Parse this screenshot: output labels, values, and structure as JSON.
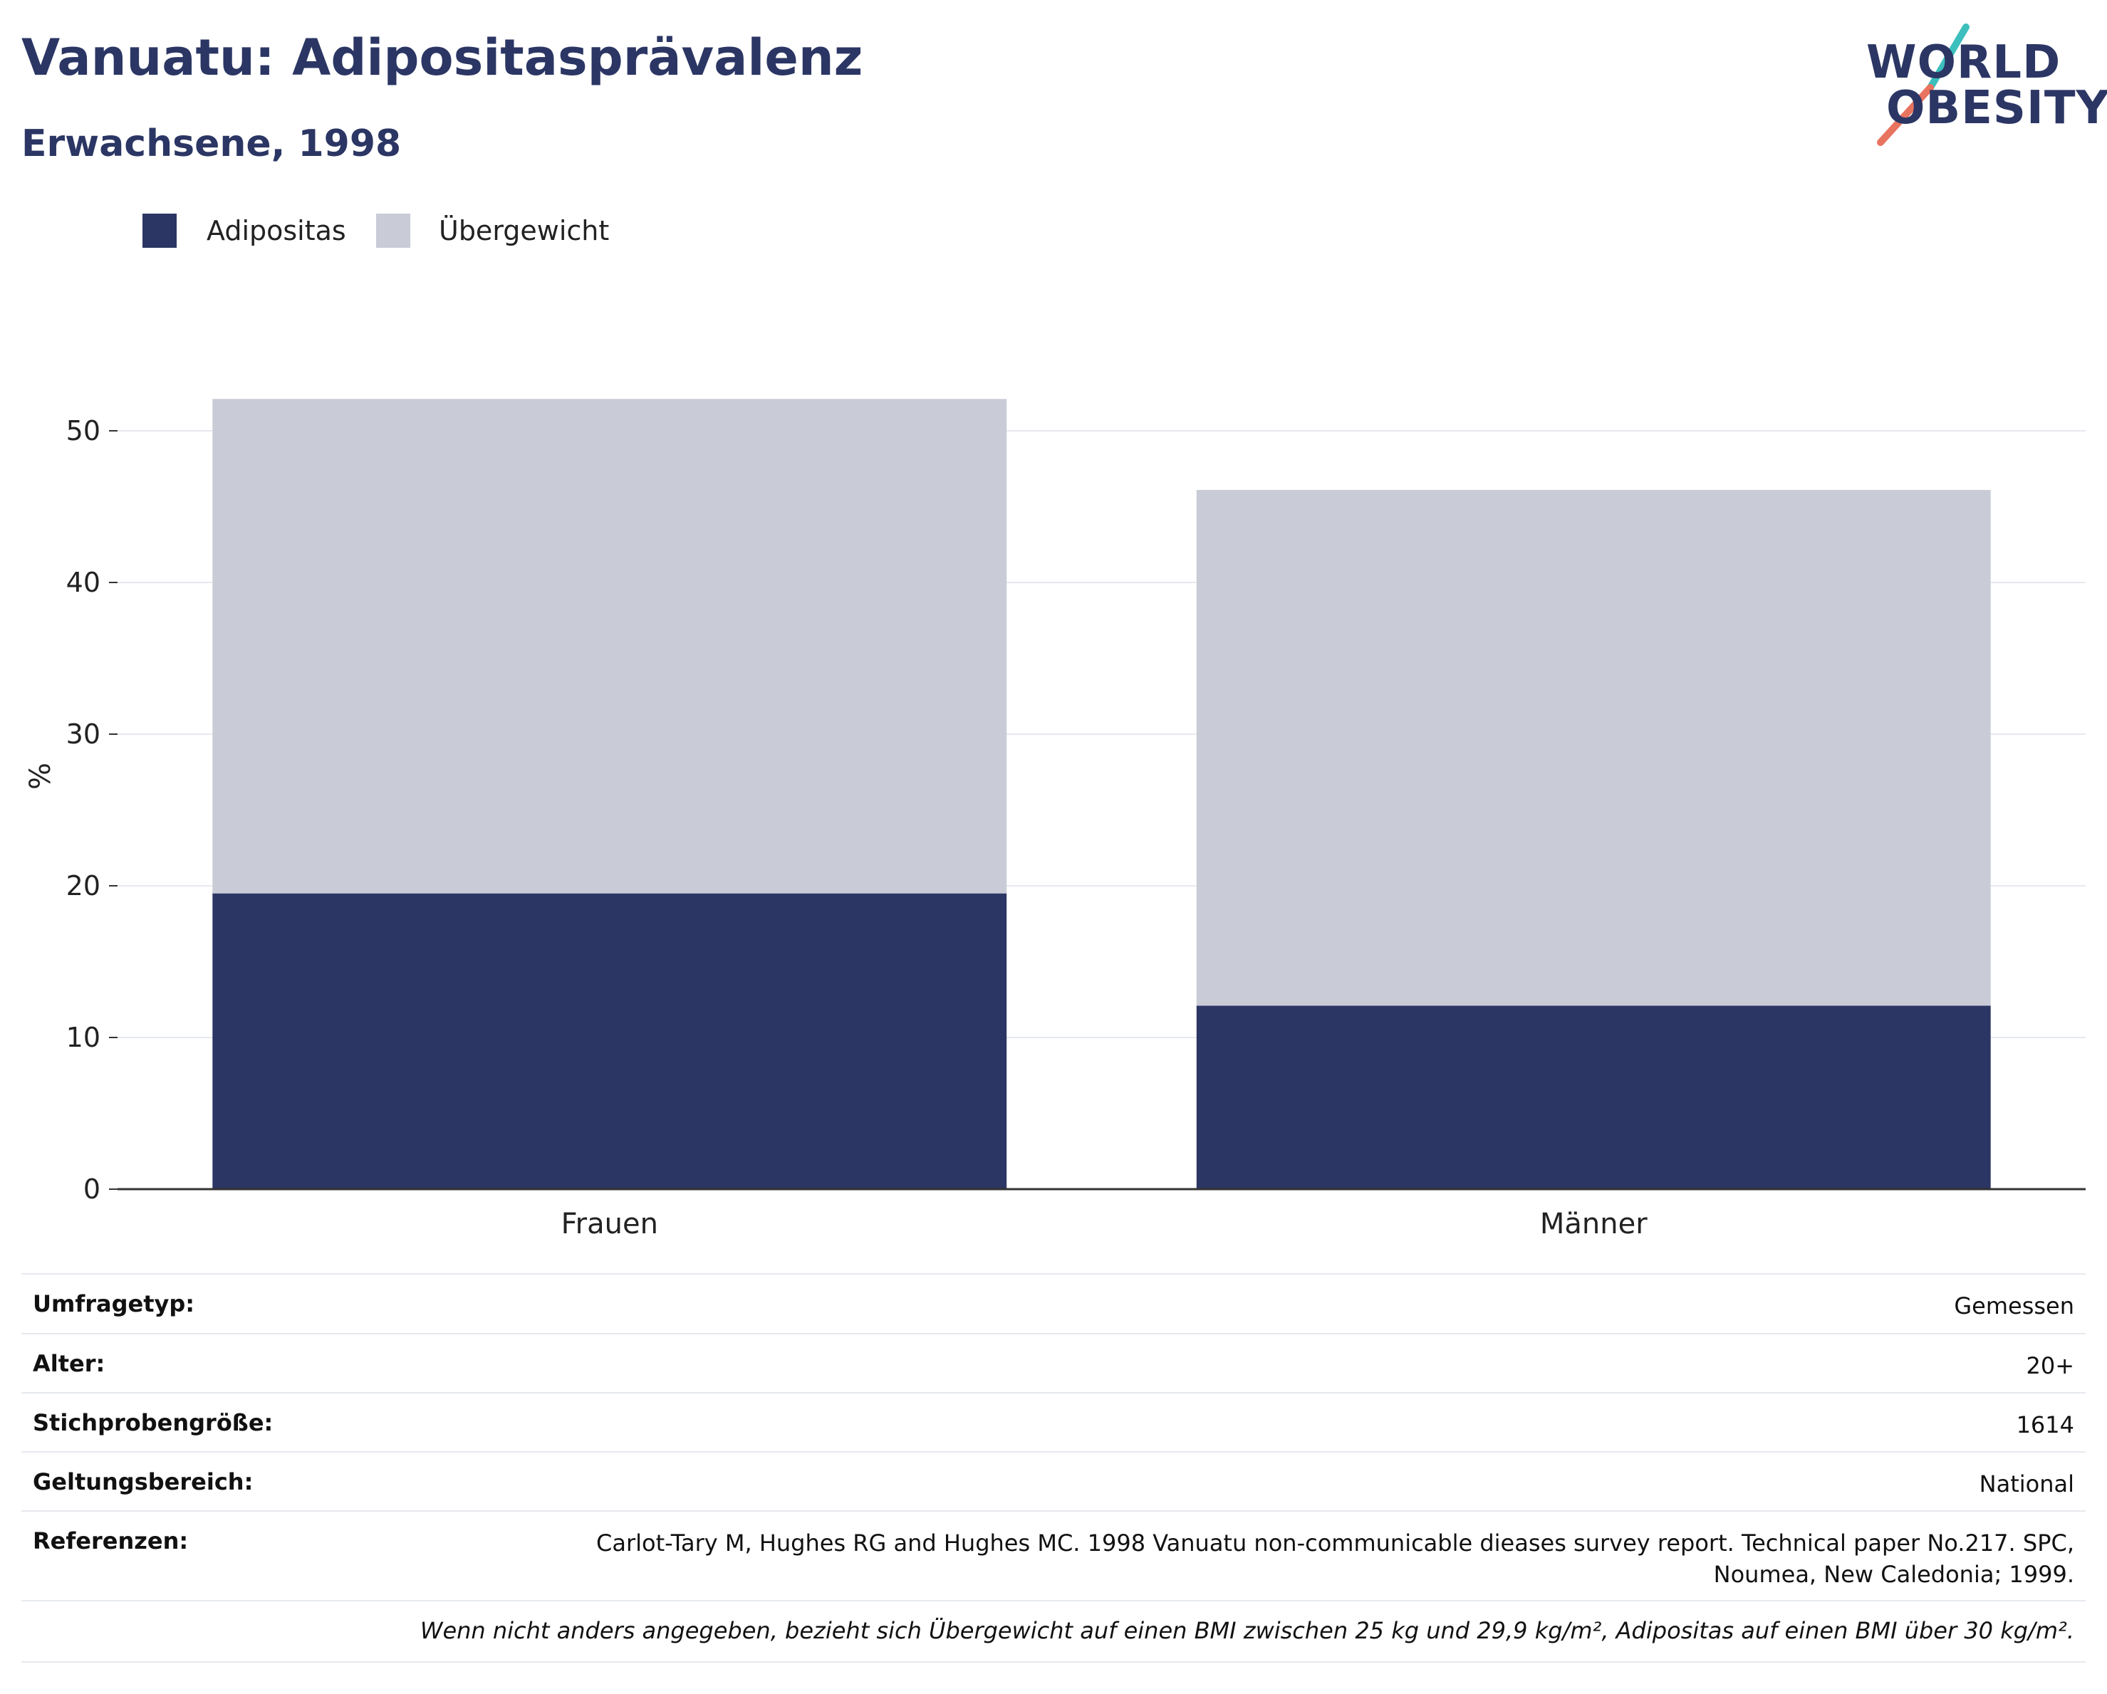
{
  "header": {
    "title": "Vanuatu: Adipositasprävalenz",
    "subtitle": "Erwachsene, 1998"
  },
  "logo": {
    "line1": "WORLD",
    "line2": "OBESITY",
    "colors": {
      "text": "#2b3664",
      "slash_top": "#3dbfbd",
      "slash_bottom": "#e8735f"
    }
  },
  "legend": [
    {
      "label": "Adipositas",
      "color": "#2b3664"
    },
    {
      "label": "Übergewicht",
      "color": "#c9cbd7"
    }
  ],
  "chart_data": {
    "type": "bar",
    "stacked": true,
    "categories": [
      "Frauen",
      "Männer"
    ],
    "series": [
      {
        "name": "Adipositas",
        "values": [
          19.5,
          12.1
        ],
        "color": "#2b3664"
      },
      {
        "name": "Übergewicht",
        "values": [
          32.6,
          34.0
        ],
        "color": "#c9cbd7"
      }
    ],
    "ylabel": "%",
    "ylim": [
      0,
      55
    ],
    "yticks": [
      0,
      10,
      20,
      30,
      40,
      50
    ],
    "grid": true,
    "legend_position": "top-left"
  },
  "info": {
    "rows": [
      {
        "key": "Umfragetyp:",
        "value": "Gemessen"
      },
      {
        "key": "Alter:",
        "value": "20+"
      },
      {
        "key": "Stichprobengröße:",
        "value": "1614"
      },
      {
        "key": "Geltungsbereich:",
        "value": "National"
      },
      {
        "key": "Referenzen:",
        "value": "Carlot-Tary M, Hughes RG and Hughes MC. 1998 Vanuatu non-communicable dieases survey report. Technical paper No.217. SPC,\nNoumea, New Caledonia; 1999."
      }
    ],
    "note": "Wenn nicht anders angegeben, bezieht sich Übergewicht auf einen BMI zwischen 25 kg und 29,9 kg/m², Adipositas auf einen BMI über 30 kg/m²."
  }
}
